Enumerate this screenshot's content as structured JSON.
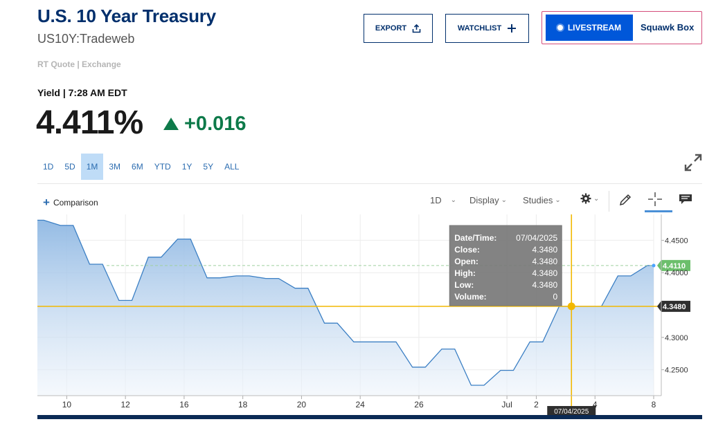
{
  "header": {
    "title": "U.S. 10 Year Treasury",
    "subtitle": "US10Y:Tradeweb",
    "quote_source": "RT Quote | Exchange",
    "yield_label": "Yield | 7:28 AM EDT",
    "price": "4.411%",
    "change": "+0.016"
  },
  "actions": {
    "export_label": "EXPORT",
    "watchlist_label": "WATCHLIST",
    "livestream_label": "LIVESTREAM",
    "squawk_label": "Squawk Box"
  },
  "range_tabs": [
    {
      "label": "1D",
      "active": false
    },
    {
      "label": "5D",
      "active": false
    },
    {
      "label": "1M",
      "active": true
    },
    {
      "label": "3M",
      "active": false
    },
    {
      "label": "6M",
      "active": false
    },
    {
      "label": "YTD",
      "active": false
    },
    {
      "label": "1Y",
      "active": false
    },
    {
      "label": "5Y",
      "active": false
    },
    {
      "label": "ALL",
      "active": false
    }
  ],
  "toolbar": {
    "comparison_label": "Comparison",
    "interval_label": "1D",
    "display_label": "Display",
    "studies_label": "Studies"
  },
  "colors": {
    "brand_navy": "#002f6c",
    "positive": "#0e7a4a",
    "live_blue": "#0057d9",
    "line": "#3b7fc4",
    "crosshair": "#f2b800",
    "current_tag": "#6cbf6c"
  },
  "icons": [
    "share-icon",
    "plus-icon",
    "expand-icon",
    "settings-icon",
    "pencil-icon",
    "crosshair-icon",
    "chat-icon"
  ],
  "chart_data": {
    "type": "area",
    "x": [
      "Jun 9",
      "Jun 10",
      "Jun 11",
      "Jun 12",
      "Jun 13",
      "Jun 16",
      "Jun 17",
      "Jun 18",
      "Jun 19",
      "Jun 20",
      "Jun 23",
      "Jun 24",
      "Jun 25",
      "Jun 26",
      "Jun 27",
      "Jun 30",
      "Jul 1",
      "Jul 2",
      "Jul 3",
      "Jul 4",
      "Jul 7",
      "Jul 8"
    ],
    "values": [
      4.481,
      4.473,
      4.413,
      4.357,
      4.424,
      4.452,
      4.392,
      4.395,
      4.391,
      4.376,
      4.322,
      4.293,
      4.293,
      4.254,
      4.282,
      4.226,
      4.249,
      4.293,
      4.348,
      4.348,
      4.395,
      4.411
    ],
    "xticks": [
      "10",
      "12",
      "16",
      "18",
      "20",
      "24",
      "26",
      "Jul",
      "2",
      "4",
      "8"
    ],
    "yticks": [
      "4.4500",
      "4.4000",
      "4.3000",
      "4.2500"
    ],
    "ylim": [
      4.21,
      4.49
    ],
    "grid": true,
    "current_value_label": "4.4110",
    "crosshair": {
      "value_label": "4.3480",
      "date_label": "07/04/2025",
      "tooltip": [
        {
          "label": "Date/Time:",
          "value": "07/04/2025"
        },
        {
          "label": "Close:",
          "value": "4.3480"
        },
        {
          "label": "Open:",
          "value": "4.3480"
        },
        {
          "label": "High:",
          "value": "4.3480"
        },
        {
          "label": "Low:",
          "value": "4.3480"
        },
        {
          "label": "Volume:",
          "value": "0"
        }
      ]
    }
  }
}
